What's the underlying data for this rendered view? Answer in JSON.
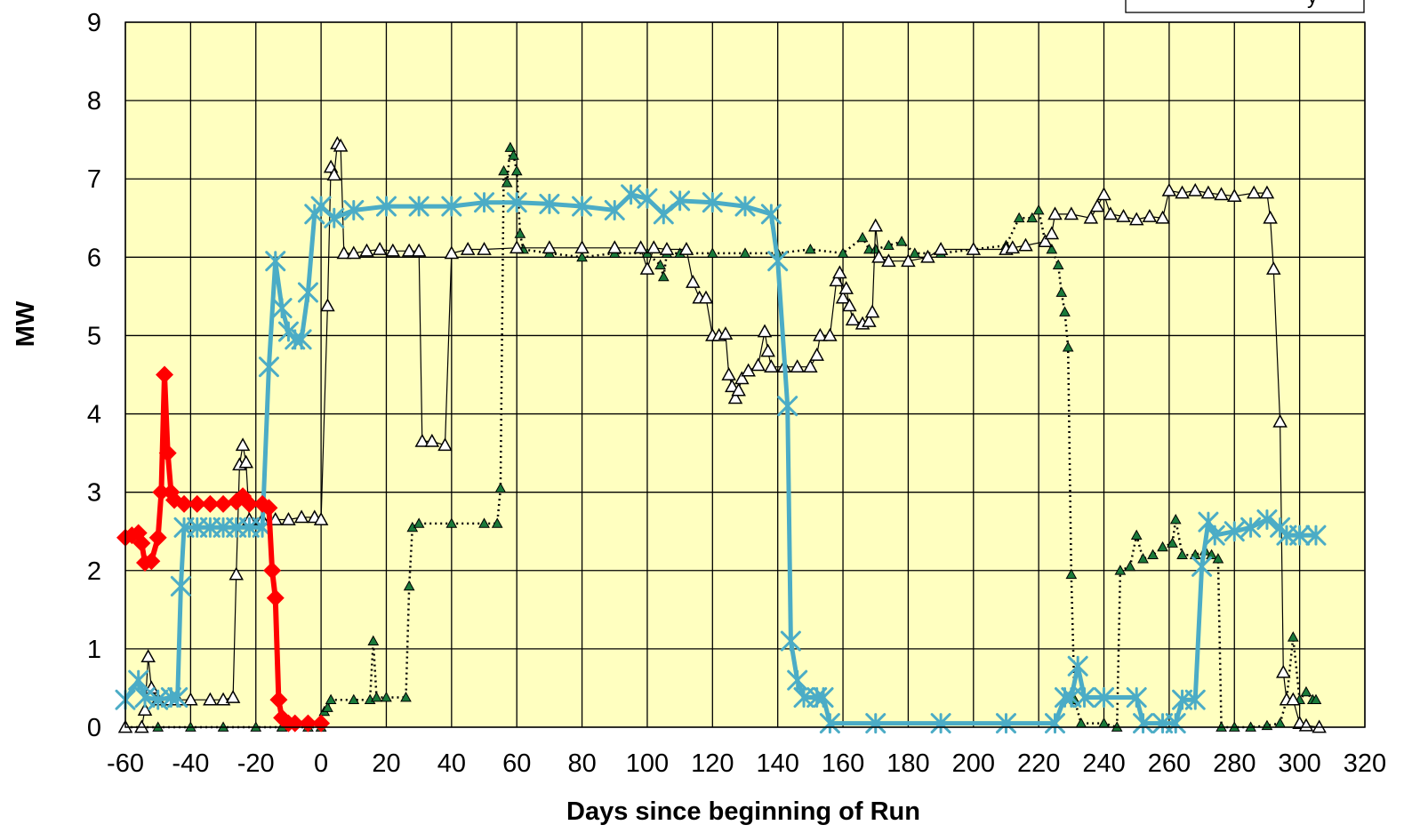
{
  "chart_data": {
    "type": "line",
    "title": "",
    "xlabel": "Days since beginning of Run",
    "ylabel": "MW",
    "xlim": [
      -60,
      320
    ],
    "ylim": [
      0,
      9
    ],
    "x_ticks": [
      -60,
      -40,
      -20,
      0,
      20,
      40,
      60,
      80,
      100,
      120,
      140,
      160,
      180,
      200,
      220,
      240,
      260,
      280,
      300,
      320
    ],
    "y_ticks": [
      0,
      1,
      2,
      3,
      4,
      5,
      6,
      7,
      8,
      9
    ],
    "grid": true,
    "plot_background": "#ffffc0",
    "legend": {
      "placement": "top-right",
      "clipped_text": "y"
    },
    "series": [
      {
        "marker": "diamond",
        "color": "#ff0000",
        "points": [
          [
            -60,
            2.42
          ],
          [
            -58,
            2.45
          ],
          [
            -56,
            2.48
          ],
          [
            -55,
            2.35
          ],
          [
            -54,
            2.1
          ],
          [
            -52,
            2.12
          ],
          [
            -50,
            2.42
          ],
          [
            -49,
            3.0
          ],
          [
            -48,
            4.5
          ],
          [
            -47,
            3.5
          ],
          [
            -46,
            3.0
          ],
          [
            -45,
            2.9
          ],
          [
            -42,
            2.85
          ],
          [
            -38,
            2.85
          ],
          [
            -34,
            2.85
          ],
          [
            -30,
            2.85
          ],
          [
            -26,
            2.88
          ],
          [
            -24,
            2.95
          ],
          [
            -22,
            2.85
          ],
          [
            -18,
            2.85
          ],
          [
            -16,
            2.8
          ],
          [
            -15,
            2.0
          ],
          [
            -14,
            1.65
          ],
          [
            -13,
            0.35
          ],
          [
            -12,
            0.12
          ],
          [
            -10,
            0.05
          ],
          [
            -8,
            0.05
          ],
          [
            -4,
            0.05
          ],
          [
            0,
            0.05
          ]
        ]
      },
      {
        "marker": "star",
        "color": "#4bacc6",
        "points": [
          [
            -60,
            0.35
          ],
          [
            -56,
            0.6
          ],
          [
            -54,
            0.38
          ],
          [
            -50,
            0.35
          ],
          [
            -46,
            0.38
          ],
          [
            -44,
            0.38
          ],
          [
            -43,
            1.8
          ],
          [
            -42,
            2.55
          ],
          [
            -38,
            2.55
          ],
          [
            -34,
            2.55
          ],
          [
            -30,
            2.55
          ],
          [
            -26,
            2.55
          ],
          [
            -22,
            2.55
          ],
          [
            -18,
            2.55
          ],
          [
            -16,
            4.6
          ],
          [
            -14,
            5.95
          ],
          [
            -12,
            5.35
          ],
          [
            -10,
            5.05
          ],
          [
            -8,
            4.95
          ],
          [
            -6,
            4.95
          ],
          [
            -4,
            5.55
          ],
          [
            -2,
            6.55
          ],
          [
            0,
            6.65
          ],
          [
            4,
            6.5
          ],
          [
            10,
            6.6
          ],
          [
            20,
            6.65
          ],
          [
            30,
            6.65
          ],
          [
            40,
            6.65
          ],
          [
            50,
            6.7
          ],
          [
            60,
            6.7
          ],
          [
            70,
            6.68
          ],
          [
            80,
            6.65
          ],
          [
            90,
            6.6
          ],
          [
            95,
            6.8
          ],
          [
            100,
            6.75
          ],
          [
            105,
            6.55
          ],
          [
            110,
            6.72
          ],
          [
            120,
            6.7
          ],
          [
            130,
            6.65
          ],
          [
            138,
            6.55
          ],
          [
            140,
            5.95
          ],
          [
            143,
            4.1
          ],
          [
            144,
            1.1
          ],
          [
            146,
            0.6
          ],
          [
            148,
            0.38
          ],
          [
            152,
            0.38
          ],
          [
            154,
            0.38
          ],
          [
            156,
            0.05
          ],
          [
            170,
            0.05
          ],
          [
            190,
            0.05
          ],
          [
            210,
            0.05
          ],
          [
            225,
            0.05
          ],
          [
            228,
            0.38
          ],
          [
            230,
            0.38
          ],
          [
            232,
            0.78
          ],
          [
            234,
            0.38
          ],
          [
            240,
            0.38
          ],
          [
            250,
            0.38
          ],
          [
            252,
            0.05
          ],
          [
            258,
            0.05
          ],
          [
            262,
            0.05
          ],
          [
            264,
            0.35
          ],
          [
            268,
            0.35
          ],
          [
            270,
            2.05
          ],
          [
            272,
            2.62
          ],
          [
            274,
            2.45
          ],
          [
            280,
            2.5
          ],
          [
            285,
            2.55
          ],
          [
            290,
            2.65
          ],
          [
            294,
            2.55
          ],
          [
            296,
            2.45
          ],
          [
            300,
            2.45
          ],
          [
            305,
            2.45
          ]
        ]
      },
      {
        "marker": "open-triangle",
        "color": "#000000",
        "points": [
          [
            -60,
            0.0
          ],
          [
            -55,
            0.0
          ],
          [
            -54,
            0.22
          ],
          [
            -53,
            0.9
          ],
          [
            -52,
            0.5
          ],
          [
            -50,
            0.35
          ],
          [
            -46,
            0.35
          ],
          [
            -44,
            0.35
          ],
          [
            -40,
            0.35
          ],
          [
            -34,
            0.35
          ],
          [
            -30,
            0.35
          ],
          [
            -27,
            0.38
          ],
          [
            -26,
            1.95
          ],
          [
            -25,
            3.35
          ],
          [
            -24,
            3.6
          ],
          [
            -23,
            3.38
          ],
          [
            -22,
            2.65
          ],
          [
            -18,
            2.65
          ],
          [
            -14,
            2.65
          ],
          [
            -10,
            2.65
          ],
          [
            -6,
            2.68
          ],
          [
            -2,
            2.68
          ],
          [
            0,
            2.65
          ],
          [
            2,
            5.38
          ],
          [
            3,
            7.15
          ],
          [
            4,
            7.05
          ],
          [
            5,
            7.45
          ],
          [
            6,
            7.42
          ],
          [
            7,
            6.05
          ],
          [
            10,
            6.05
          ],
          [
            14,
            6.08
          ],
          [
            18,
            6.1
          ],
          [
            22,
            6.08
          ],
          [
            27,
            6.08
          ],
          [
            30,
            6.08
          ],
          [
            31,
            3.65
          ],
          [
            34,
            3.65
          ],
          [
            38,
            3.6
          ],
          [
            40,
            6.05
          ],
          [
            45,
            6.1
          ],
          [
            50,
            6.1
          ],
          [
            60,
            6.12
          ],
          [
            70,
            6.12
          ],
          [
            80,
            6.12
          ],
          [
            90,
            6.12
          ],
          [
            98,
            6.12
          ],
          [
            100,
            5.85
          ],
          [
            102,
            6.12
          ],
          [
            106,
            6.1
          ],
          [
            112,
            6.1
          ],
          [
            114,
            5.68
          ],
          [
            116,
            5.48
          ],
          [
            118,
            5.48
          ],
          [
            120,
            5.0
          ],
          [
            122,
            5.0
          ],
          [
            124,
            5.02
          ],
          [
            125,
            4.5
          ],
          [
            126,
            4.35
          ],
          [
            127,
            4.2
          ],
          [
            128,
            4.3
          ],
          [
            129,
            4.45
          ],
          [
            131,
            4.55
          ],
          [
            134,
            4.62
          ],
          [
            136,
            5.05
          ],
          [
            137,
            4.8
          ],
          [
            138,
            4.6
          ],
          [
            142,
            4.6
          ],
          [
            146,
            4.6
          ],
          [
            150,
            4.6
          ],
          [
            152,
            4.75
          ],
          [
            153,
            5.0
          ],
          [
            156,
            5.0
          ],
          [
            158,
            5.7
          ],
          [
            159,
            5.8
          ],
          [
            160,
            5.48
          ],
          [
            161,
            5.6
          ],
          [
            162,
            5.38
          ],
          [
            163,
            5.2
          ],
          [
            166,
            5.15
          ],
          [
            168,
            5.18
          ],
          [
            169,
            5.3
          ],
          [
            170,
            6.4
          ],
          [
            171,
            6.0
          ],
          [
            174,
            5.95
          ],
          [
            180,
            5.95
          ],
          [
            186,
            6.0
          ],
          [
            190,
            6.1
          ],
          [
            200,
            6.1
          ],
          [
            210,
            6.1
          ],
          [
            212,
            6.12
          ],
          [
            216,
            6.15
          ],
          [
            222,
            6.2
          ],
          [
            224,
            6.3
          ],
          [
            225,
            6.55
          ],
          [
            230,
            6.55
          ],
          [
            236,
            6.5
          ],
          [
            238,
            6.65
          ],
          [
            240,
            6.8
          ],
          [
            242,
            6.55
          ],
          [
            246,
            6.52
          ],
          [
            250,
            6.48
          ],
          [
            254,
            6.52
          ],
          [
            258,
            6.5
          ],
          [
            260,
            6.85
          ],
          [
            264,
            6.82
          ],
          [
            268,
            6.85
          ],
          [
            272,
            6.82
          ],
          [
            276,
            6.8
          ],
          [
            280,
            6.78
          ],
          [
            286,
            6.82
          ],
          [
            290,
            6.82
          ],
          [
            291,
            6.5
          ],
          [
            292,
            5.85
          ],
          [
            294,
            3.9
          ],
          [
            295,
            0.7
          ],
          [
            296,
            0.35
          ],
          [
            298,
            0.35
          ],
          [
            300,
            0.05
          ],
          [
            302,
            0.02
          ],
          [
            306,
            0.0
          ]
        ]
      },
      {
        "marker": "filled-triangle",
        "color": "#1a7a3a",
        "line_style": "dotted",
        "points": [
          [
            -60,
            0.0
          ],
          [
            -50,
            0.0
          ],
          [
            -40,
            0.0
          ],
          [
            -30,
            0.0
          ],
          [
            -20,
            0.0
          ],
          [
            -12,
            0.0
          ],
          [
            -4,
            0.0
          ],
          [
            0,
            0.0
          ],
          [
            1,
            0.2
          ],
          [
            2,
            0.25
          ],
          [
            3,
            0.35
          ],
          [
            10,
            0.35
          ],
          [
            15,
            0.35
          ],
          [
            16,
            1.1
          ],
          [
            17,
            0.38
          ],
          [
            20,
            0.38
          ],
          [
            26,
            0.38
          ],
          [
            27,
            1.8
          ],
          [
            28,
            2.55
          ],
          [
            30,
            2.6
          ],
          [
            40,
            2.6
          ],
          [
            50,
            2.6
          ],
          [
            54,
            2.6
          ],
          [
            55,
            3.05
          ],
          [
            56,
            7.1
          ],
          [
            57,
            6.95
          ],
          [
            58,
            7.4
          ],
          [
            59,
            7.3
          ],
          [
            60,
            7.1
          ],
          [
            61,
            6.3
          ],
          [
            62,
            6.1
          ],
          [
            70,
            6.05
          ],
          [
            80,
            6.0
          ],
          [
            90,
            6.05
          ],
          [
            100,
            6.05
          ],
          [
            104,
            5.9
          ],
          [
            105,
            5.75
          ],
          [
            106,
            6.05
          ],
          [
            110,
            6.05
          ],
          [
            120,
            6.05
          ],
          [
            130,
            6.05
          ],
          [
            140,
            6.05
          ],
          [
            150,
            6.1
          ],
          [
            160,
            6.05
          ],
          [
            166,
            6.25
          ],
          [
            168,
            6.1
          ],
          [
            170,
            6.1
          ],
          [
            174,
            6.15
          ],
          [
            178,
            6.2
          ],
          [
            182,
            6.05
          ],
          [
            190,
            6.05
          ],
          [
            200,
            6.1
          ],
          [
            210,
            6.15
          ],
          [
            214,
            6.5
          ],
          [
            218,
            6.5
          ],
          [
            220,
            6.6
          ],
          [
            222,
            6.2
          ],
          [
            224,
            6.1
          ],
          [
            226,
            5.9
          ],
          [
            227,
            5.55
          ],
          [
            228,
            5.3
          ],
          [
            229,
            4.85
          ],
          [
            230,
            1.95
          ],
          [
            231,
            0.35
          ],
          [
            233,
            0.05
          ],
          [
            240,
            0.05
          ],
          [
            244,
            0.0
          ],
          [
            245,
            2.0
          ],
          [
            248,
            2.05
          ],
          [
            250,
            2.45
          ],
          [
            252,
            2.15
          ],
          [
            255,
            2.2
          ],
          [
            258,
            2.3
          ],
          [
            261,
            2.35
          ],
          [
            262,
            2.65
          ],
          [
            264,
            2.2
          ],
          [
            268,
            2.2
          ],
          [
            271,
            2.25
          ],
          [
            273,
            2.2
          ],
          [
            275,
            2.15
          ],
          [
            276,
            0.0
          ],
          [
            280,
            0.0
          ],
          [
            285,
            0.0
          ],
          [
            290,
            0.02
          ],
          [
            294,
            0.05
          ],
          [
            296,
            0.35
          ],
          [
            298,
            1.15
          ],
          [
            300,
            0.35
          ],
          [
            302,
            0.45
          ],
          [
            304,
            0.35
          ],
          [
            305,
            0.35
          ]
        ]
      }
    ]
  }
}
